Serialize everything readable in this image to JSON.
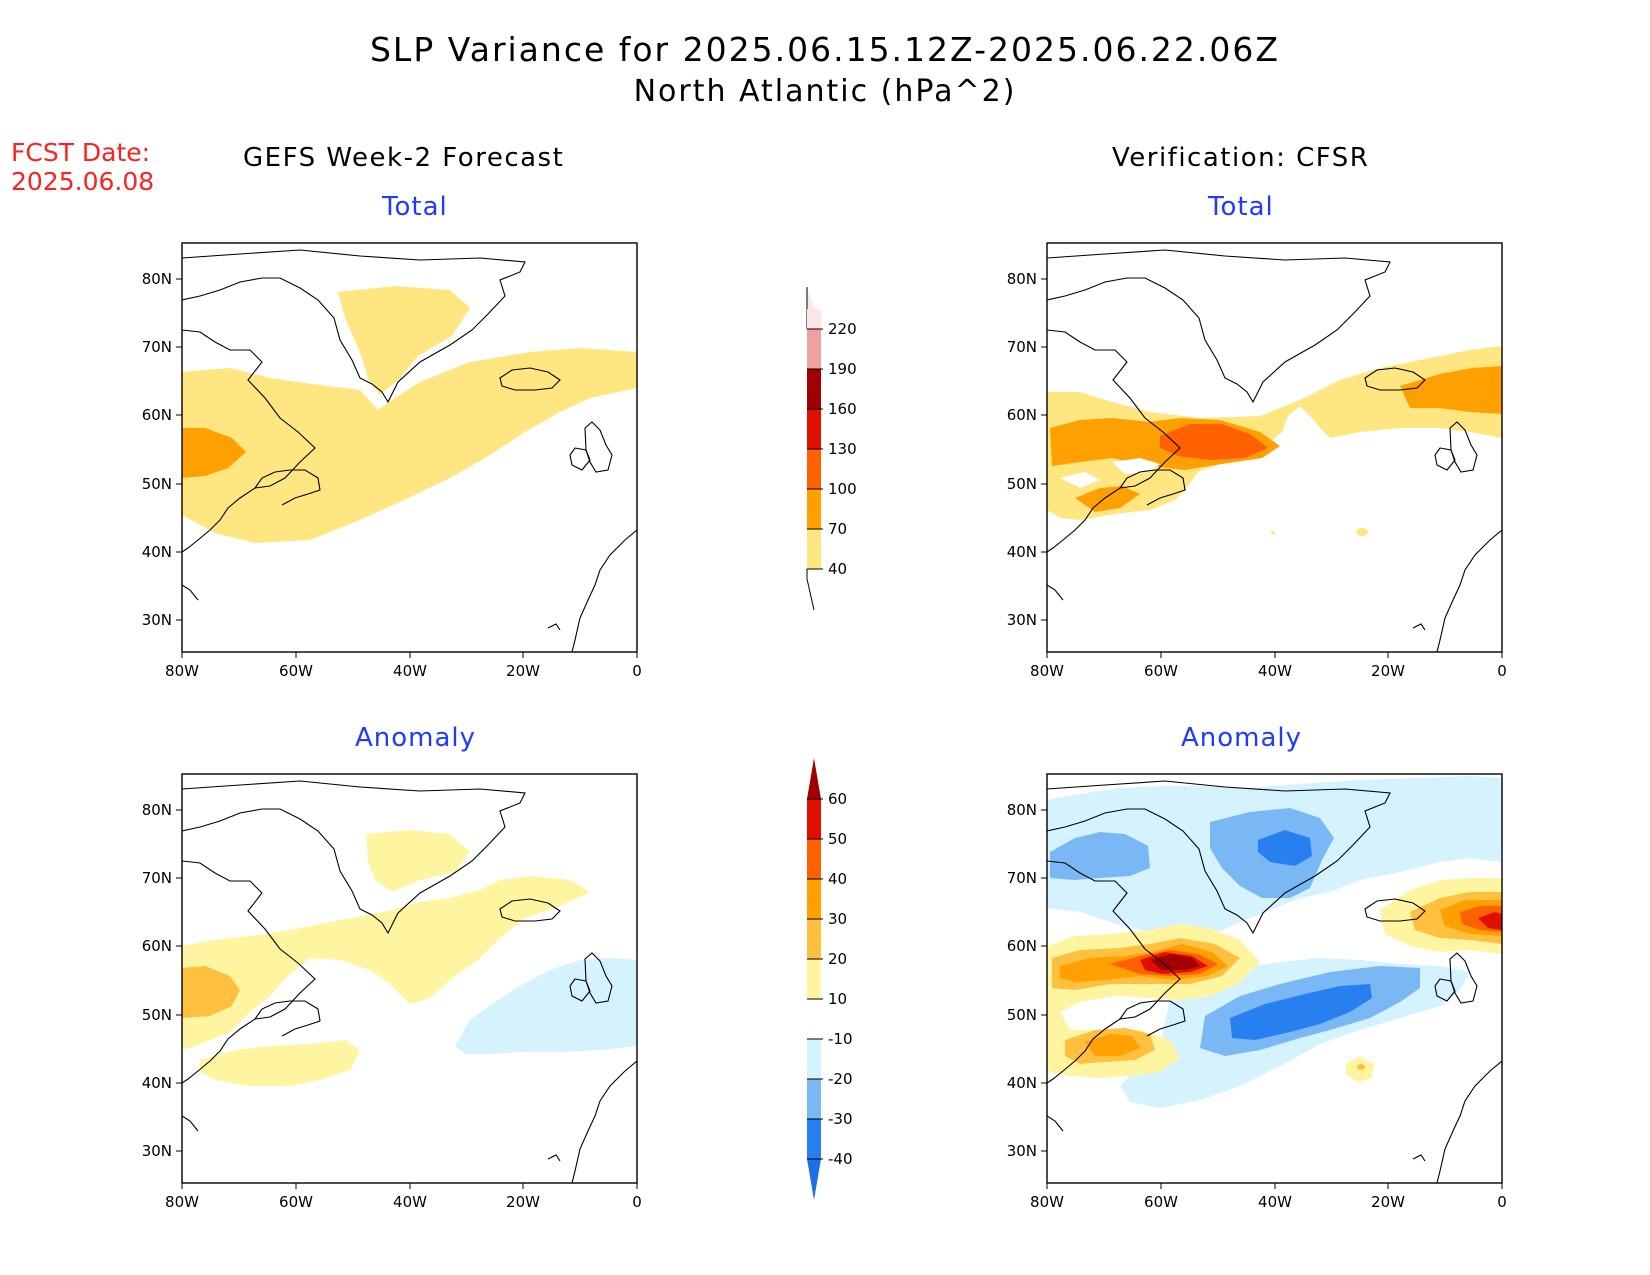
{
  "title": {
    "line1": "SLP Variance for 2025.06.15.12Z-2025.06.22.06Z",
    "line2": "North Atlantic (hPa^2)"
  },
  "fcst_date": {
    "label": "FCST Date:",
    "value": "2025.06.08"
  },
  "columns": {
    "left": "GEFS Week-2 Forecast",
    "right": "Verification: CFSR"
  },
  "panels": {
    "top_left": "Total",
    "top_right": "Total",
    "bottom_left": "Anomaly",
    "bottom_right": "Anomaly"
  },
  "axes": {
    "lon_ticks": [
      "80W",
      "60W",
      "40W",
      "20W",
      "0"
    ],
    "lat_ticks": [
      "80N",
      "70N",
      "60N",
      "50N",
      "40N",
      "30N"
    ],
    "lon_range": [
      -80,
      0
    ],
    "lat_range": [
      25,
      85
    ]
  },
  "colorbars": {
    "total": {
      "labels": [
        "40",
        "70",
        "100",
        "130",
        "160",
        "190",
        "220"
      ],
      "colors": [
        "#ffe680",
        "#ffa000",
        "#ff6000",
        "#e01000",
        "#a00000",
        "#f0a0a0",
        "#ffe6e6"
      ]
    },
    "anomaly": {
      "labels": [
        "-40",
        "-30",
        "-20",
        "-10",
        "10",
        "20",
        "30",
        "40",
        "50",
        "60"
      ],
      "colors": [
        "#1e6ee6",
        "#2880f0",
        "#7ab8f5",
        "#d4f2ff",
        "#ffffff",
        "#fff5a0",
        "#ffc040",
        "#ffa000",
        "#ff6000",
        "#e01000",
        "#a00000"
      ]
    }
  },
  "colors": {
    "title_text": "#000000",
    "fcst_text": "#ff2020",
    "panel_label": "#1e3cff"
  }
}
